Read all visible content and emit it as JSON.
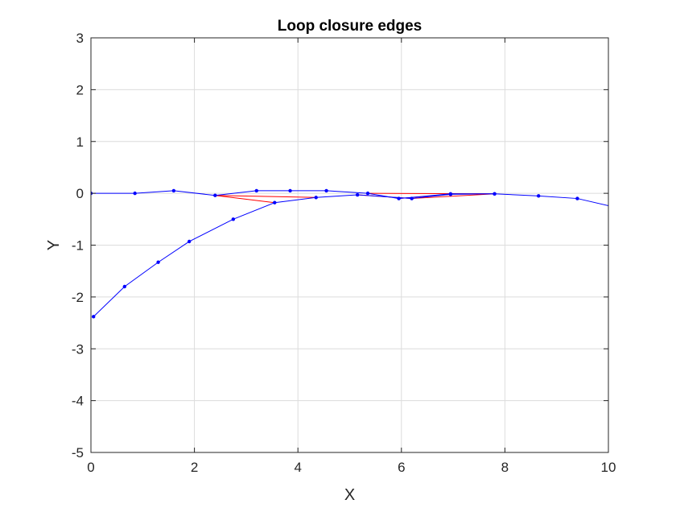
{
  "chart_data": {
    "type": "line",
    "title": "Loop closure edges",
    "xlabel": "X",
    "ylabel": "Y",
    "xlim": [
      0,
      10
    ],
    "ylim": [
      -5,
      3
    ],
    "xticks": [
      0,
      2,
      4,
      6,
      8,
      10
    ],
    "yticks": [
      3,
      2,
      1,
      0,
      -1,
      -2,
      -3,
      -4,
      -5
    ],
    "grid": true,
    "colors": {
      "trajectory": "#0000ff",
      "loop_closure": "#ff0000"
    },
    "series": [
      {
        "role": "trajectory",
        "points": [
          [
            0.0,
            0.0
          ],
          [
            0.85,
            0.0
          ],
          [
            1.6,
            0.05
          ],
          [
            2.4,
            -0.04
          ],
          [
            3.2,
            0.05
          ],
          [
            3.85,
            0.05
          ],
          [
            4.55,
            0.05
          ],
          [
            5.35,
            0.0
          ],
          [
            5.95,
            -0.1
          ],
          [
            6.95,
            -0.01
          ],
          [
            7.8,
            -0.01
          ],
          [
            8.65,
            -0.05
          ],
          [
            9.4,
            -0.1
          ],
          [
            10.05,
            -0.25
          ]
        ]
      },
      {
        "role": "trajectory",
        "points": [
          [
            0.05,
            -2.38
          ],
          [
            0.65,
            -1.8
          ],
          [
            1.3,
            -1.33
          ],
          [
            1.9,
            -0.93
          ],
          [
            2.75,
            -0.5
          ],
          [
            3.55,
            -0.18
          ],
          [
            4.35,
            -0.08
          ],
          [
            5.15,
            -0.03
          ],
          [
            6.2,
            -0.1
          ],
          [
            6.95,
            -0.02
          ],
          [
            7.8,
            -0.01
          ]
        ]
      }
    ],
    "loop_closures": [
      [
        [
          2.4,
          -0.04
        ],
        [
          4.35,
          -0.08
        ]
      ],
      [
        [
          2.4,
          -0.04
        ],
        [
          3.55,
          -0.18
        ]
      ],
      [
        [
          5.15,
          -0.03
        ],
        [
          6.2,
          -0.1
        ]
      ],
      [
        [
          5.35,
          0.0
        ],
        [
          7.8,
          -0.01
        ]
      ],
      [
        [
          6.2,
          -0.1
        ],
        [
          7.8,
          -0.01
        ]
      ],
      [
        [
          5.95,
          -0.1
        ],
        [
          6.95,
          -0.02
        ]
      ]
    ]
  }
}
